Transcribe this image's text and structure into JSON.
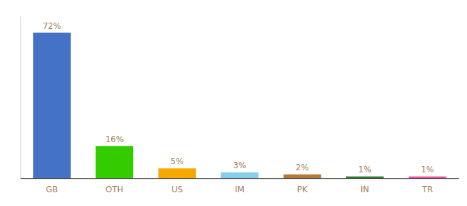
{
  "chart_data": {
    "type": "bar",
    "categories": [
      "GB",
      "OTH",
      "US",
      "IM",
      "PK",
      "IN",
      "TR"
    ],
    "values": [
      72,
      16,
      5,
      3,
      2,
      1,
      1
    ],
    "value_labels": [
      "72%",
      "16%",
      "5%",
      "3%",
      "2%",
      "1%",
      "1%"
    ],
    "colors": [
      "#4472c4",
      "#33cc00",
      "#f5a800",
      "#87ceeb",
      "#b5783a",
      "#2d7a2d",
      "#e8559a"
    ],
    "ylim": [
      0,
      80
    ],
    "data_labels": true,
    "tick_labels": "x",
    "grid": false
  }
}
